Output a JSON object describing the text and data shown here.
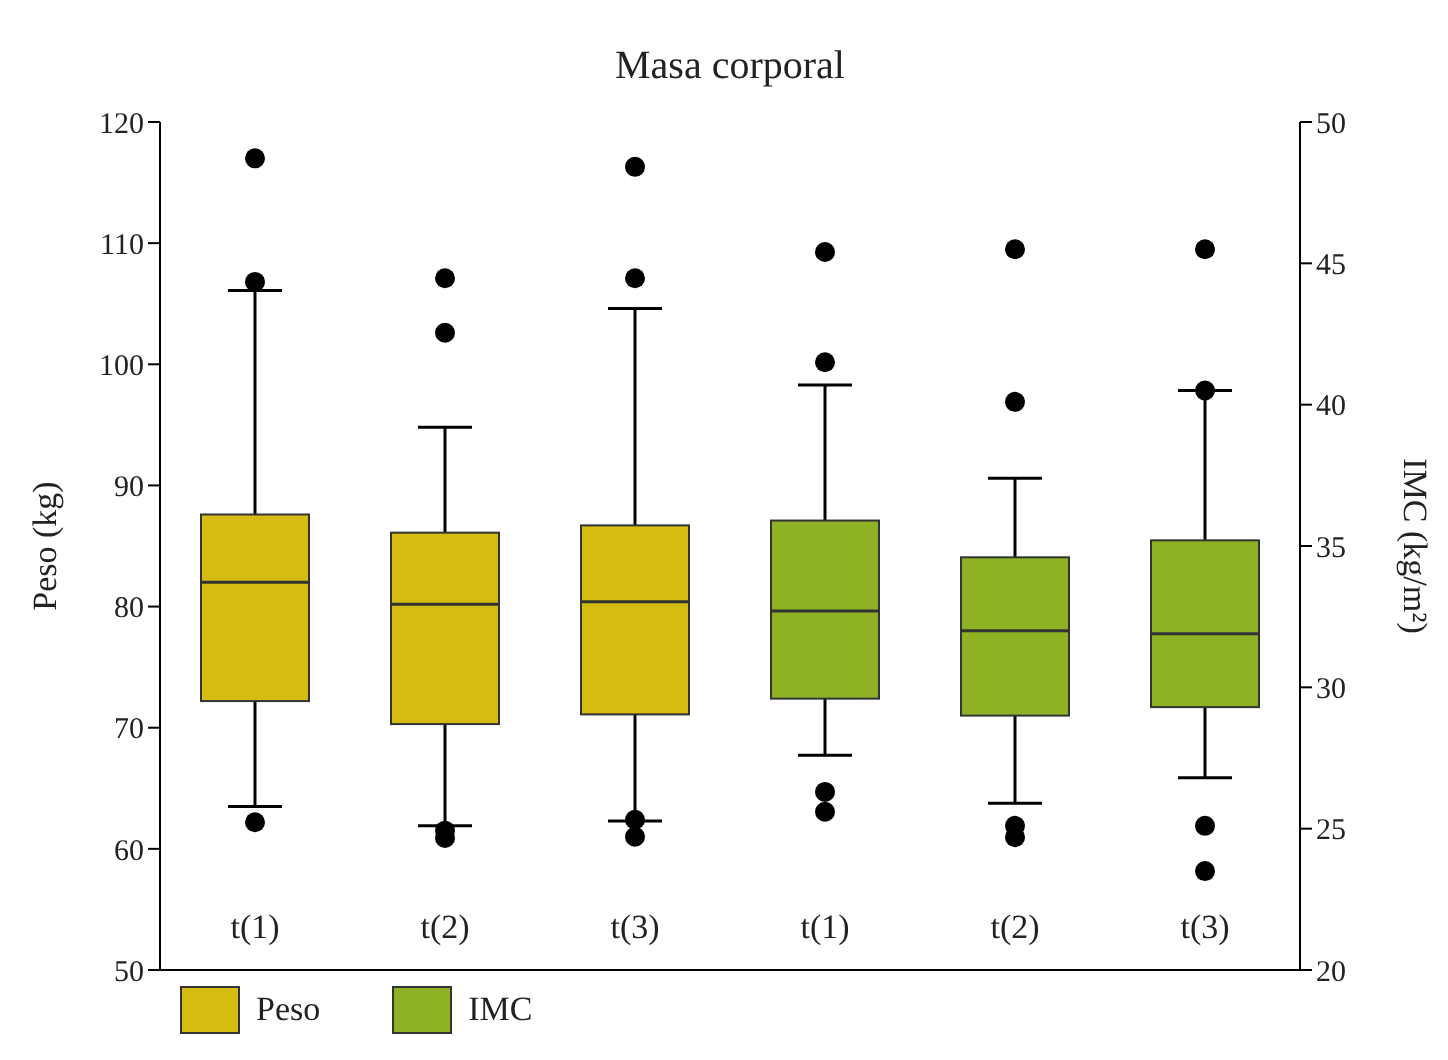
{
  "chart_data": {
    "type": "box",
    "title": "Masa corporal",
    "ylabel": "Peso (kg)",
    "y2label": "IMC (kg/m²)",
    "categories": [
      "t(1)",
      "t(2)",
      "t(3)",
      "t(1)",
      "t(2)",
      "t(3)"
    ],
    "ylim": [
      50,
      120
    ],
    "yticks": [
      50,
      60,
      70,
      80,
      90,
      100,
      110,
      120
    ],
    "y2lim": [
      20,
      50
    ],
    "y2ticks": [
      20,
      25,
      30,
      35,
      40,
      45,
      50
    ],
    "legend": "bottom left",
    "series": [
      {
        "name": "Peso",
        "color": "#d4bc12",
        "boxes": [
          {
            "low": 63.5,
            "q1": 72.2,
            "median": 82.0,
            "q3": 87.6,
            "high": 106.1,
            "outliers": [
              117,
              106.8,
              62.2
            ]
          },
          {
            "low": 61.9,
            "q1": 70.3,
            "median": 80.2,
            "q3": 86.1,
            "high": 94.8,
            "outliers": [
              107.1,
              102.6,
              61.5,
              60.9
            ]
          },
          {
            "low": 62.3,
            "q1": 71.1,
            "median": 80.4,
            "q3": 86.7,
            "high": 104.6,
            "outliers": [
              116.3,
              107.1,
              62.4,
              61.0
            ]
          },
          null,
          null,
          null
        ]
      },
      {
        "name": "IMC",
        "color": "#8fb225",
        "axis": "y2",
        "boxes": [
          null,
          null,
          null,
          {
            "low": 27.6,
            "q1": 29.6,
            "median": 32.7,
            "q3": 35.9,
            "high": 40.7,
            "outliers": [
              45.4,
              41.5,
              26.3,
              25.6
            ]
          },
          {
            "low": 25.9,
            "q1": 29.0,
            "median": 32.0,
            "q3": 34.6,
            "high": 37.4,
            "outliers": [
              45.5,
              40.1,
              25.1,
              24.7
            ]
          },
          {
            "low": 26.8,
            "q1": 29.3,
            "median": 31.9,
            "q3": 35.2,
            "high": 40.5,
            "outliers": [
              45.5,
              40.5,
              25.1,
              23.5
            ]
          }
        ]
      }
    ]
  }
}
